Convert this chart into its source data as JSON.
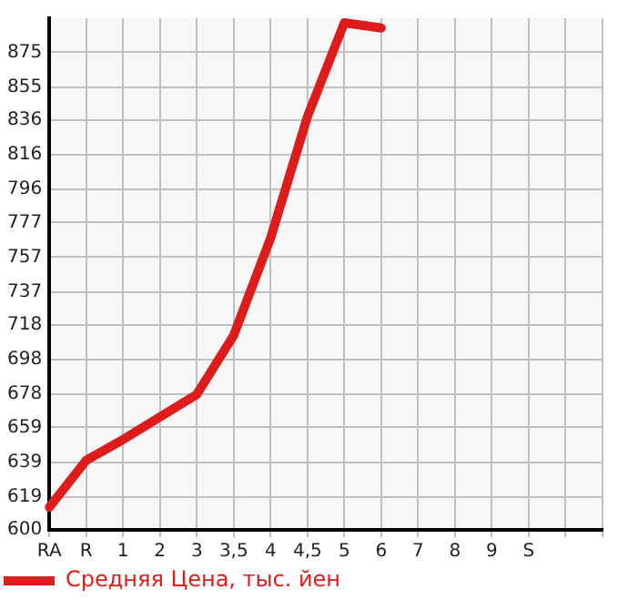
{
  "chart_data": {
    "type": "line",
    "categories": [
      "RA",
      "R",
      "1",
      "2",
      "3",
      "3,5",
      "4",
      "4,5",
      "5",
      "6",
      "7",
      "8",
      "9",
      "S",
      null,
      null
    ],
    "series": [
      {
        "name": "Средняя Цена, тыс. йен",
        "color": "#dd1c1c",
        "values": [
          613,
          640,
          652,
          665,
          678,
          712,
          768,
          838,
          892,
          889,
          null,
          null,
          null,
          null,
          null,
          null
        ]
      }
    ],
    "ylim": [
      600,
      894.6
    ],
    "yticks": [
      600,
      619,
      639,
      659,
      678,
      698,
      718,
      737,
      757,
      777,
      796,
      816,
      836,
      855,
      875
    ],
    "grid": true,
    "legend": "bottom left",
    "marker": "none",
    "line_style": "solid"
  }
}
